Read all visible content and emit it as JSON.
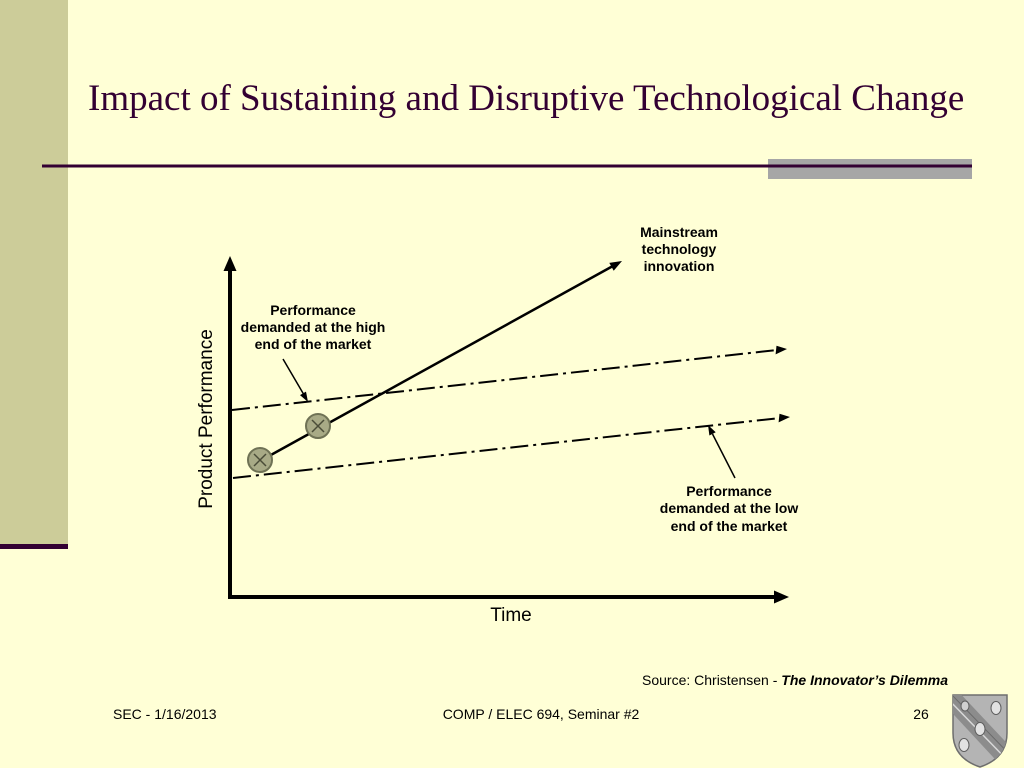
{
  "slide": {
    "title": "Impact of Sustaining and Disruptive Technological Change"
  },
  "diagram": {
    "y_axis_label": "Product Performance",
    "x_axis_label": "Time",
    "mainstream_label": [
      "Mainstream",
      "technology",
      "innovation"
    ],
    "high_end_label": [
      "Performance",
      "demanded at the high",
      "end of the market"
    ],
    "low_end_label": [
      "Performance",
      "demanded at the low",
      "end of the market"
    ]
  },
  "source": {
    "prefix": "Source: Christensen - ",
    "book": "The Innovator’s Dilemma"
  },
  "footer": {
    "left": "SEC - 1/16/2013",
    "center": "COMP / ELEC 694, Seminar #2",
    "page": "26"
  },
  "logo": {
    "icon": "rice-shield-logo"
  },
  "colors": {
    "background": "#FFFFD6",
    "sidebar": "#CCCC99",
    "accent": "#330033",
    "marker": "#A8AA86"
  }
}
